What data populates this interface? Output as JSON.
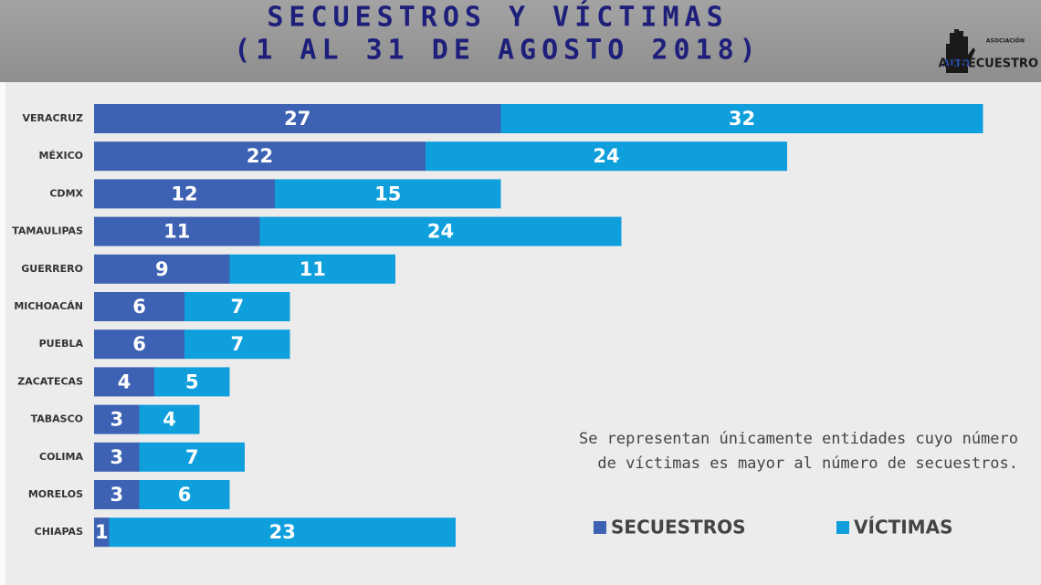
{
  "chart_data": {
    "type": "stacked-barh",
    "title": "SECUESTROS Y VÍCTIMAS",
    "subtitle": "(1 AL 31 DE AGOSTO 2018)",
    "categories": [
      "VERACRUZ",
      "MÉXICO",
      "CDMX",
      "TAMAULIPAS",
      "GUERRERO",
      "MICHOACÁN",
      "PUEBLA",
      "ZACATECAS",
      "TABASCO",
      "COLIMA",
      "MORELOS",
      "CHIAPAS"
    ],
    "series": [
      {
        "name": "SECUESTROS",
        "color": "#3e62b3",
        "values": [
          27,
          22,
          12,
          11,
          9,
          6,
          6,
          4,
          3,
          3,
          3,
          1
        ]
      },
      {
        "name": "VÍCTIMAS",
        "color": "#0f9fdc",
        "values": [
          32,
          24,
          15,
          24,
          11,
          7,
          7,
          5,
          4,
          7,
          6,
          23
        ]
      }
    ],
    "annotation": [
      "Se representan únicamente entidades cuyo número",
      "de víctimas es mayor al número de secuestros."
    ],
    "legend": "bottom-right"
  },
  "logo": {
    "top": "ASOCIACIÓN",
    "alto": "ALTO",
    "rest": "AL SECUESTRO"
  }
}
